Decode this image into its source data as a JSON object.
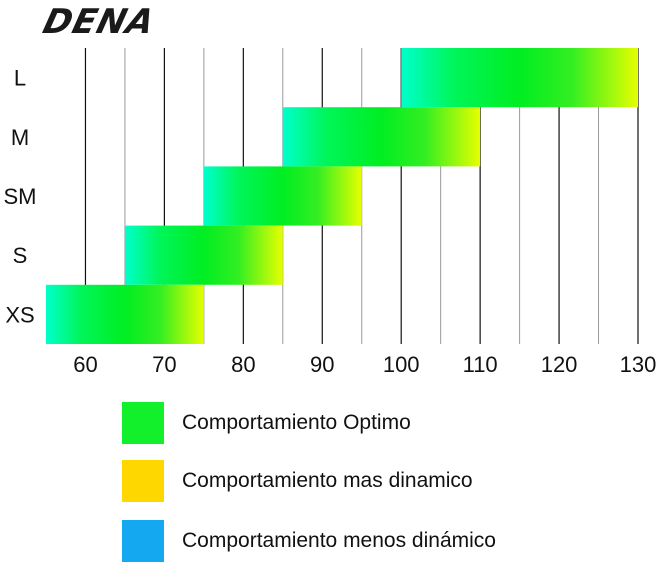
{
  "brand": "DENA",
  "chart_data": {
    "type": "bar",
    "orientation": "horizontal-range",
    "categories": [
      "L",
      "M",
      "SM",
      "S",
      "XS"
    ],
    "ranges": [
      {
        "category": "L",
        "start": 100,
        "end": 130
      },
      {
        "category": "M",
        "start": 85,
        "end": 110
      },
      {
        "category": "SM",
        "start": 75,
        "end": 95
      },
      {
        "category": "S",
        "start": 65,
        "end": 85
      },
      {
        "category": "XS",
        "start": 55,
        "end": 75
      }
    ],
    "x_ticks": [
      60,
      70,
      80,
      90,
      100,
      110,
      120,
      130
    ],
    "xlim": [
      55,
      130
    ],
    "minor_gridlines_every": 5,
    "major_gridlines_every": 10,
    "grid": true,
    "legend_placement": "bottom",
    "colors": {
      "menos_dinamico": "#00ffcc",
      "optimo": "#00ee22",
      "mas_dinamico": "#ffff00"
    }
  },
  "legend": [
    {
      "label": "Comportamiento Optimo",
      "color": "#12f02c"
    },
    {
      "label": "Comportamiento mas dinamico",
      "color": "#ffd700"
    },
    {
      "label": "Comportamiento menos dinámico",
      "color": "#13a8f0"
    }
  ]
}
